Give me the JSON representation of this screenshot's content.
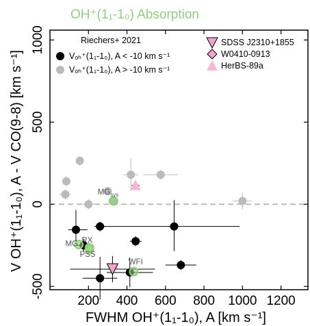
{
  "chart_data": {
    "type": "scatter",
    "title": "OH⁺(1₁-1₀) Absorption",
    "title_color": "#8fd17e",
    "xlabel": "FWHM OH⁺(1₁-1₀), A [km s⁻¹]",
    "ylabel": "V OH⁺(1₁-1₀), A - V CO(9-8) [km s⁻¹]",
    "xlim": [
      0,
      1340
    ],
    "ylim": [
      -520,
      1060
    ],
    "x_ticks": [
      "200",
      "400",
      "600",
      "800",
      "1000",
      "1200"
    ],
    "y_ticks": [
      "-500",
      "0",
      "500",
      "1000"
    ],
    "x_tick_values": [
      200,
      400,
      600,
      800,
      1000,
      1200
    ],
    "y_tick_values": [
      -500,
      0,
      500,
      1000
    ],
    "zero_line_color": "#bbbbbb",
    "legend_left": {
      "title": "Riechers+ 2021",
      "entries": [
        {
          "label": "Vₒₕ⁺(1₁-1₀), A < -10 km s⁻¹",
          "color": "#000000"
        },
        {
          "label": "Vₒₕ⁺(1₁-1₀), A > -10 km s⁻¹",
          "color": "#bbbbbb"
        }
      ]
    },
    "legend_right": {
      "entries": [
        {
          "label": "SDSS J2310+1855",
          "marker": "triangle-down",
          "color": "#f2a3c9"
        },
        {
          "label": "W0410-0913",
          "marker": "diamond",
          "color": "#f2a3c9"
        },
        {
          "label": "HerBS-89a",
          "marker": "triangle-up",
          "color": "#f7b8d5"
        }
      ]
    },
    "series": [
      {
        "name": "V < -10 km/s",
        "color": "#000000",
        "points": [
          {
            "x": 135,
            "y": -155,
            "xerr": [
              40,
              60
            ],
            "yerr": [
              80,
              120
            ]
          },
          {
            "x": 260,
            "y": -135,
            "xerr": [
              30,
              30
            ],
            "yerr": [
              30,
              30
            ]
          },
          {
            "x": 445,
            "y": -225,
            "xerr": [
              30,
              30
            ],
            "yerr": [
              30,
              30
            ]
          },
          {
            "x": 645,
            "y": -135,
            "xerr": [
              380,
              340
            ],
            "yerr": [
              150,
              160
            ]
          },
          {
            "x": 175,
            "y": -250,
            "xerr": [
              40,
              40
            ],
            "yerr": [
              40,
              40
            ]
          },
          {
            "x": 680,
            "y": -370,
            "xerr": [
              80,
              80
            ],
            "yerr": [
              30,
              30
            ]
          },
          {
            "x": 260,
            "y": -450,
            "xerr": [
              90,
              90
            ],
            "yerr": [
              130,
              130
            ]
          },
          {
            "x": 415,
            "y": -415,
            "xerr": [
              120,
              120
            ],
            "yerr": [
              90,
              90
            ]
          }
        ]
      },
      {
        "name": "V > -10 km/s",
        "color": "#bbbbbb",
        "points": [
          {
            "x": 155,
            "y": 265,
            "xerr": [
              20,
              20
            ],
            "yerr": [
              30,
              30
            ]
          },
          {
            "x": 85,
            "y": 140,
            "xerr": [
              20,
              20
            ],
            "yerr": [
              30,
              30
            ]
          },
          {
            "x": 80,
            "y": 60,
            "xerr": [
              30,
              30
            ],
            "yerr": [
              30,
              30
            ]
          },
          {
            "x": 200,
            "y": 0,
            "xerr": [
              30,
              30
            ],
            "yerr": [
              30,
              30
            ]
          },
          {
            "x": 420,
            "y": 180,
            "xerr": [
              40,
              40
            ],
            "yerr": [
              100,
              100
            ]
          },
          {
            "x": 575,
            "y": 180,
            "xerr": [
              90,
              90
            ],
            "yerr": [
              30,
              30
            ]
          },
          {
            "x": 300,
            "y": 80,
            "xerr": [
              20,
              20
            ],
            "yerr": [
              20,
              20
            ]
          },
          {
            "x": 330,
            "y": 20,
            "xerr": [
              20,
              20
            ],
            "yerr": [
              20,
              20
            ]
          },
          {
            "x": 1000,
            "y": 20,
            "xerr": [
              50,
              50
            ],
            "yerr": [
              50,
              50
            ]
          }
        ]
      },
      {
        "name": "SDSS J2310+1855",
        "marker": "triangle-down",
        "color": "#f2a3c9",
        "points": [
          {
            "x": 325,
            "y": -395,
            "xerr": [
              220,
              220
            ],
            "yerr": [
              80,
              80
            ]
          }
        ]
      },
      {
        "name": "HerBS-89a",
        "marker": "triangle-up",
        "color": "#f7b8d5",
        "points": [
          {
            "x": 445,
            "y": 115,
            "xerr": [
              20,
              20
            ],
            "yerr": [
              20,
              20
            ]
          }
        ]
      }
    ],
    "highlighted": [
      {
        "label": "MG",
        "x": 150,
        "y": -245
      },
      {
        "label": "RX",
        "x": 205,
        "y": -265
      },
      {
        "label": "PSS",
        "x": 205,
        "y": -275
      },
      {
        "label": "WFI",
        "x": 435,
        "y": -410
      },
      {
        "label": "MGsys",
        "x": 330,
        "y": 20
      }
    ],
    "highlight_color": "#8fd17e",
    "annotations": [
      {
        "text": "MG",
        "x": 80,
        "y": -255
      },
      {
        "text": "RX",
        "x": 165,
        "y": -235
      },
      {
        "text": "PSS",
        "x": 155,
        "y": -320
      },
      {
        "text": "WFI",
        "x": 408,
        "y": -365
      },
      {
        "text": "MG",
        "sub": "sys",
        "x": 248,
        "y": 60
      }
    ]
  }
}
